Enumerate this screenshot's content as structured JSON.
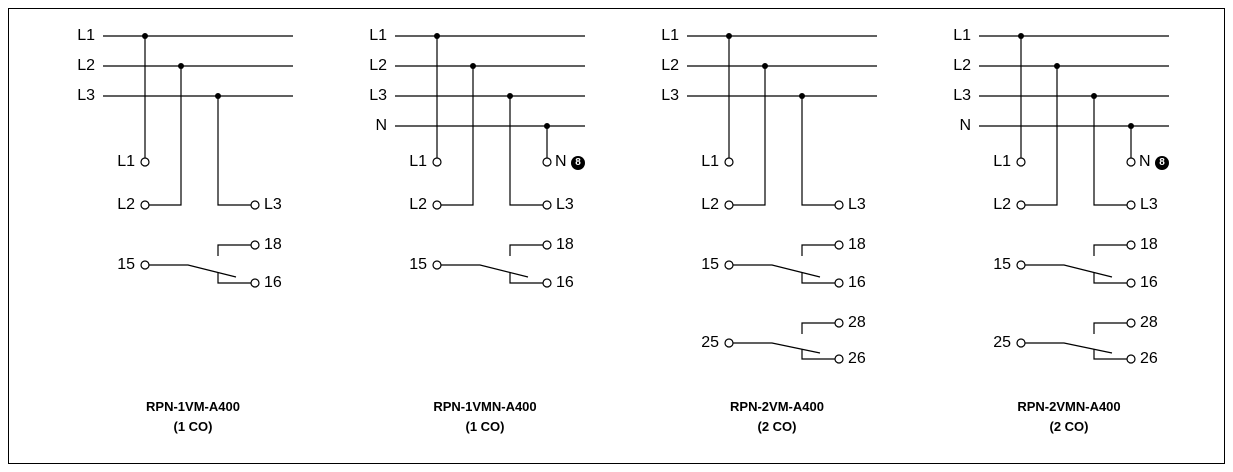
{
  "diagrams": [
    {
      "model": "RPN-1VM-A400",
      "contacts": "(1 CO)",
      "has_neutral": false,
      "bus_labels": [
        "L1",
        "L2",
        "L3"
      ],
      "terminals": {
        "l1": "L1",
        "l2": "L2",
        "l3": "L3"
      },
      "relays": [
        {
          "common": "15",
          "no": "18",
          "nc": "16"
        }
      ]
    },
    {
      "model": "RPN-1VMN-A400",
      "contacts": "(1 CO)",
      "has_neutral": true,
      "bus_labels": [
        "L1",
        "L2",
        "L3",
        "N"
      ],
      "terminals": {
        "l1": "L1",
        "l2": "L2",
        "l3": "L3",
        "n": "N",
        "n_note": "8"
      },
      "relays": [
        {
          "common": "15",
          "no": "18",
          "nc": "16"
        }
      ]
    },
    {
      "model": "RPN-2VM-A400",
      "contacts": "(2 CO)",
      "has_neutral": false,
      "bus_labels": [
        "L1",
        "L2",
        "L3"
      ],
      "terminals": {
        "l1": "L1",
        "l2": "L2",
        "l3": "L3"
      },
      "relays": [
        {
          "common": "15",
          "no": "18",
          "nc": "16"
        },
        {
          "common": "25",
          "no": "28",
          "nc": "26"
        }
      ]
    },
    {
      "model": "RPN-2VMN-A400",
      "contacts": "(2 CO)",
      "has_neutral": true,
      "bus_labels": [
        "L1",
        "L2",
        "L3",
        "N"
      ],
      "terminals": {
        "l1": "L1",
        "l2": "L2",
        "l3": "L3",
        "n": "N",
        "n_note": "8"
      },
      "relays": [
        {
          "common": "15",
          "no": "18",
          "nc": "16"
        },
        {
          "common": "25",
          "no": "28",
          "nc": "26"
        }
      ]
    }
  ]
}
